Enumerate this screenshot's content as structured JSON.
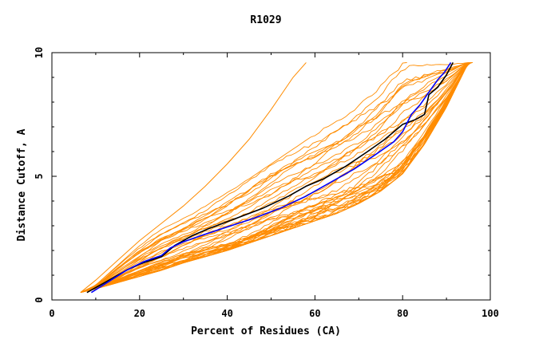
{
  "chart_data": {
    "type": "line",
    "title": "R1029",
    "xlabel": "Percent of Residues (CA)",
    "ylabel": "Distance Cutoff, A",
    "xlim": [
      0,
      100
    ],
    "ylim": [
      0,
      10
    ],
    "xticks": [
      "0",
      "20",
      "40",
      "60",
      "80",
      "100"
    ],
    "yticks": [
      "0",
      "5",
      "10"
    ],
    "grid": false,
    "legend": "none",
    "colors": {
      "models": "#ff8c00",
      "highlight_black": "#000000",
      "highlight_blue": "#0000ff"
    },
    "model_band": {
      "x": [
        6.5,
        10,
        15,
        20,
        25,
        30,
        35,
        40,
        45,
        50,
        55,
        60,
        65,
        70,
        75,
        80,
        85,
        90,
        95
      ],
      "lower_y": [
        0.3,
        0.45,
        0.7,
        0.95,
        1.2,
        1.5,
        1.75,
        2.0,
        2.3,
        2.6,
        2.9,
        3.2,
        3.5,
        3.9,
        4.4,
        5.1,
        6.3,
        7.8,
        9.6
      ],
      "upper_y": [
        0.3,
        0.6,
        1.4,
        2.2,
        2.9,
        3.4,
        3.9,
        4.4,
        4.9,
        5.5,
        6.1,
        6.7,
        7.4,
        8.1,
        8.8,
        9.6,
        9.6,
        9.6,
        9.6
      ]
    },
    "series": [
      {
        "x": [
          6.5,
          10,
          15,
          20,
          25,
          30,
          35,
          40,
          45,
          50,
          55,
          58
        ],
        "y": [
          0.3,
          0.8,
          1.6,
          2.4,
          3.1,
          3.8,
          4.6,
          5.5,
          6.5,
          7.7,
          9.0,
          9.6
        ]
      },
      {
        "x": [
          8,
          12,
          17,
          20,
          25,
          28,
          32,
          36,
          42,
          48,
          54,
          58,
          62,
          67,
          72,
          76,
          80,
          83,
          85,
          86,
          88,
          90,
          91.5
        ],
        "y": [
          0.3,
          0.7,
          1.2,
          1.45,
          1.75,
          2.2,
          2.6,
          2.9,
          3.3,
          3.7,
          4.2,
          4.6,
          4.9,
          5.4,
          6.0,
          6.5,
          7.1,
          7.3,
          7.5,
          8.3,
          8.6,
          9.1,
          9.6
        ]
      },
      {
        "x": [
          9,
          13,
          17,
          21,
          25,
          27,
          30,
          34,
          40,
          46,
          52,
          58,
          64,
          69,
          74,
          78,
          80,
          82,
          84,
          86,
          88,
          89.5,
          91
        ],
        "y": [
          0.3,
          0.75,
          1.2,
          1.55,
          1.8,
          2.1,
          2.35,
          2.6,
          2.95,
          3.3,
          3.7,
          4.2,
          4.8,
          5.3,
          5.9,
          6.4,
          6.8,
          7.5,
          7.9,
          8.4,
          8.9,
          9.2,
          9.6
        ]
      }
    ]
  }
}
